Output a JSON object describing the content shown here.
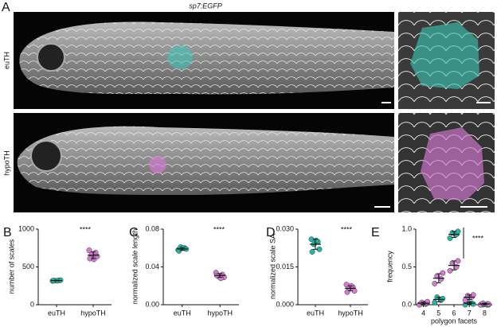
{
  "figure": {
    "panel": "A",
    "title": "sp7:EGFP",
    "row_labels": [
      "euTH",
      "hypoTH"
    ]
  },
  "chart_data": [
    {
      "type": "dot",
      "panel": "B",
      "y_label": "number of scales",
      "annotation": "****",
      "categories": [
        "euTH",
        "hypoTH"
      ],
      "colors": [
        "#22b8a8",
        "#d67ad2"
      ],
      "points": [
        [
          315,
          322,
          318,
          325,
          320,
          317
        ],
        [
          720,
          690,
          665,
          640,
          610,
          600
        ]
      ],
      "means": [
        320,
        654
      ],
      "sds": [
        4,
        45
      ],
      "ylim": [
        0,
        1000
      ],
      "yticks": [
        0,
        500,
        1000
      ]
    },
    {
      "type": "dot",
      "panel": "C",
      "y_label": "normalized scale length",
      "annotation": "****",
      "categories": [
        "euTH",
        "hypoTH"
      ],
      "colors": [
        "#22b8a8",
        "#d67ad2"
      ],
      "points": [
        [
          0.058,
          0.06,
          0.061,
          0.059,
          0.057,
          0.06
        ],
        [
          0.034,
          0.032,
          0.03,
          0.029,
          0.031,
          0.028
        ]
      ],
      "means": [
        0.059,
        0.031
      ],
      "sds": [
        0.0015,
        0.002
      ],
      "ylim": [
        0,
        0.08
      ],
      "yticks": [
        {
          "value": 0,
          "label": "0.00"
        },
        {
          "value": 0.04,
          "label": "0.04"
        },
        {
          "value": 0.08,
          "label": "0.08"
        }
      ]
    },
    {
      "type": "dot",
      "panel": "D",
      "y_label": "normalized scale SA",
      "annotation": "****",
      "categories": [
        "euTH",
        "hypoTH"
      ],
      "colors": [
        "#22b8a8",
        "#d67ad2"
      ],
      "points": [
        [
          0.026,
          0.025,
          0.024,
          0.022,
          0.021,
          0.0255
        ],
        [
          0.008,
          0.007,
          0.0065,
          0.0055,
          0.005,
          0.0075
        ]
      ],
      "means": [
        0.024,
        0.0065
      ],
      "sds": [
        0.002,
        0.001
      ],
      "ylim": [
        0,
        0.03
      ],
      "yticks": [
        {
          "value": 0,
          "label": "0.000"
        },
        {
          "value": 0.015,
          "label": "0.015"
        },
        {
          "value": 0.03,
          "label": "0.030"
        }
      ]
    },
    {
      "type": "grouped-dot",
      "panel": "E",
      "y_label": "frequency",
      "x_label": "polygon facets",
      "annotation": "****",
      "categories": [
        "4",
        "5",
        "6",
        "7",
        "8"
      ],
      "series": [
        {
          "color": "#22b8a8",
          "points": [
            [
              0,
              0.01,
              0.02,
              0.03
            ],
            [
              0.03,
              0.06,
              0.1,
              0.08
            ],
            [
              0.88,
              0.93,
              0.95,
              0.97
            ],
            [
              0,
              0.02,
              0.04,
              0.01
            ],
            [
              0,
              0,
              0,
              0
            ]
          ],
          "means": [
            0.015,
            0.07,
            0.93,
            0.02,
            0
          ],
          "sds": [
            0.012,
            0.03,
            0.04,
            0.015,
            0
          ]
        },
        {
          "color": "#d67ad2",
          "points": [
            [
              0,
              0.02,
              0.03,
              0.04
            ],
            [
              0.28,
              0.34,
              0.38,
              0.42
            ],
            [
              0.45,
              0.5,
              0.55,
              0.58
            ],
            [
              0.06,
              0.1,
              0.12,
              0.13
            ],
            [
              0,
              0.01,
              0.02,
              0.01
            ]
          ],
          "means": [
            0.02,
            0.35,
            0.52,
            0.1,
            0.01
          ],
          "sds": [
            0.015,
            0.06,
            0.06,
            0.03,
            0.01
          ]
        }
      ],
      "ylim": [
        0,
        1
      ],
      "yticks": [
        {
          "value": 0,
          "label": "0.0"
        },
        {
          "value": 0.5,
          "label": "0.5"
        },
        {
          "value": 1,
          "label": "1.0"
        }
      ]
    }
  ]
}
